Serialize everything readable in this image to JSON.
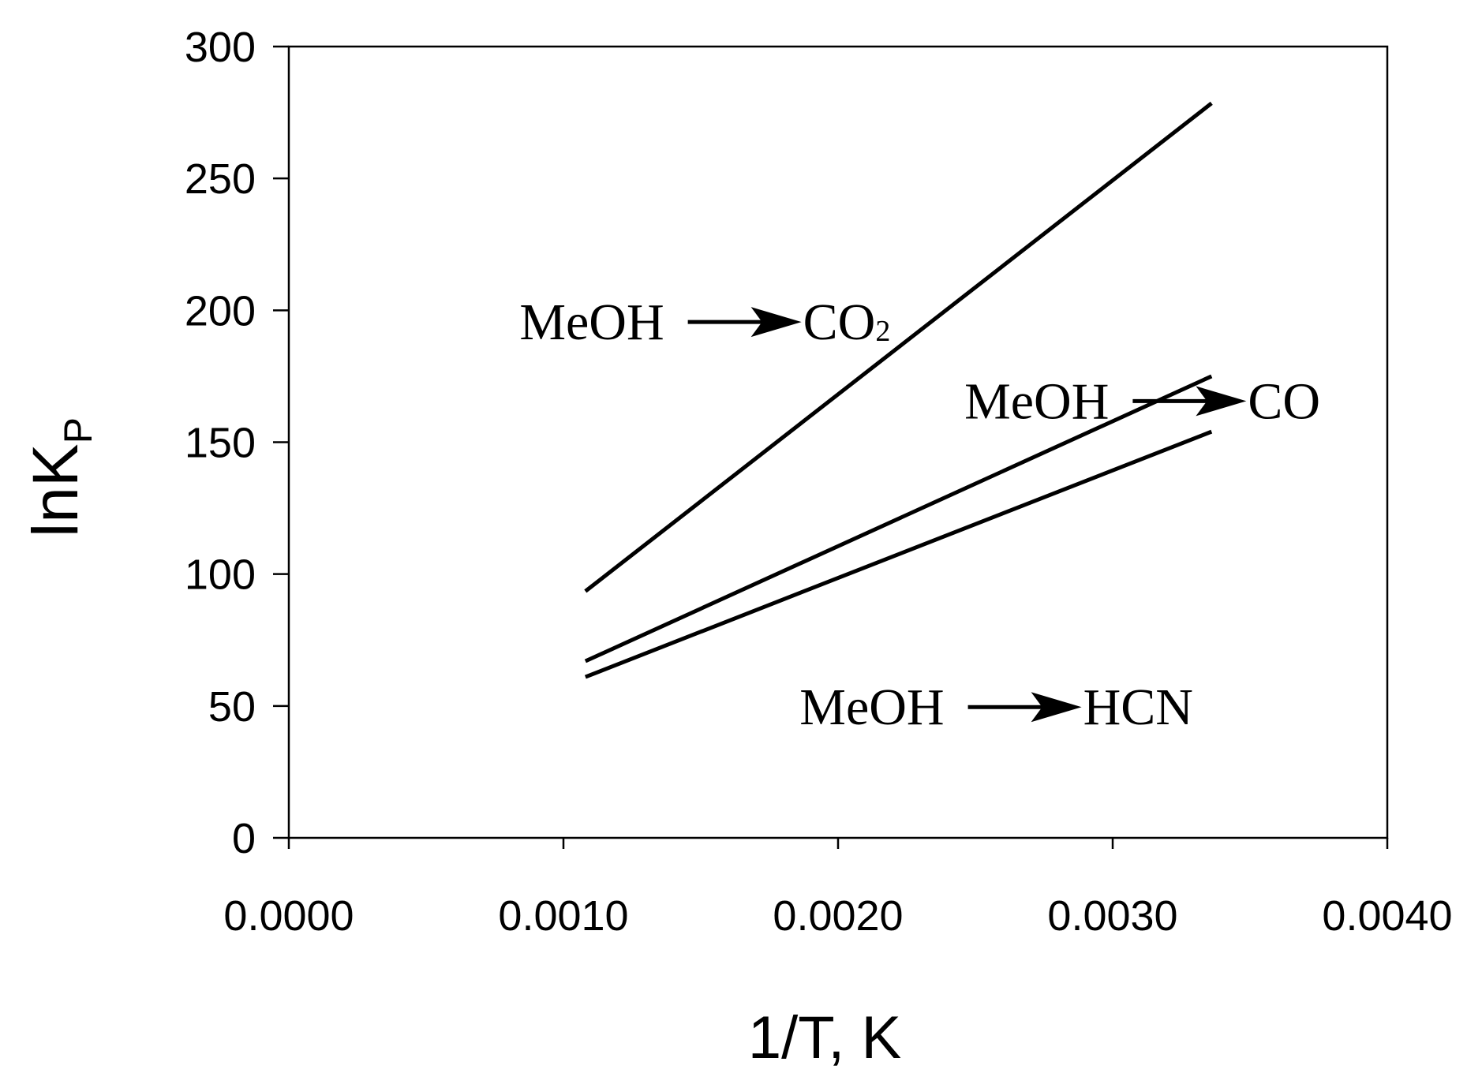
{
  "chart_data": {
    "type": "line",
    "title": "",
    "xlabel": "1/T, K",
    "ylabel": {
      "main": "lnK",
      "subscript": "P"
    },
    "xlim": [
      0.0,
      0.004
    ],
    "ylim": [
      0,
      300
    ],
    "xticks": [
      {
        "value": 0.0,
        "label": "0.0000"
      },
      {
        "value": 0.001,
        "label": "0.0010"
      },
      {
        "value": 0.002,
        "label": "0.0020"
      },
      {
        "value": 0.003,
        "label": "0.0030"
      },
      {
        "value": 0.004,
        "label": "0.0040"
      }
    ],
    "yticks": [
      {
        "value": 0,
        "label": "0"
      },
      {
        "value": 50,
        "label": "50"
      },
      {
        "value": 100,
        "label": "100"
      },
      {
        "value": 150,
        "label": "150"
      },
      {
        "value": 200,
        "label": "200"
      },
      {
        "value": 250,
        "label": "250"
      },
      {
        "value": 300,
        "label": "300"
      }
    ],
    "grid": false,
    "legend": "none",
    "series": [
      {
        "x": [
          0.00108,
          0.00336
        ],
        "y": [
          93.5,
          278.5
        ]
      },
      {
        "x": [
          0.00108,
          0.00336
        ],
        "y": [
          67,
          175
        ]
      },
      {
        "x": [
          0.00108,
          0.00336
        ],
        "y": [
          61,
          154
        ]
      }
    ],
    "annotations": [
      {
        "reactant": "MeOH",
        "product": "CO",
        "product_subscript": "2",
        "x": 0.00084,
        "y": 189
      },
      {
        "reactant": "MeOH",
        "product": "CO",
        "product_subscript": "",
        "x": 0.00246,
        "y": 159
      },
      {
        "reactant": "MeOH",
        "product": "HCN",
        "product_subscript": "",
        "x": 0.00186,
        "y": 43
      }
    ]
  }
}
